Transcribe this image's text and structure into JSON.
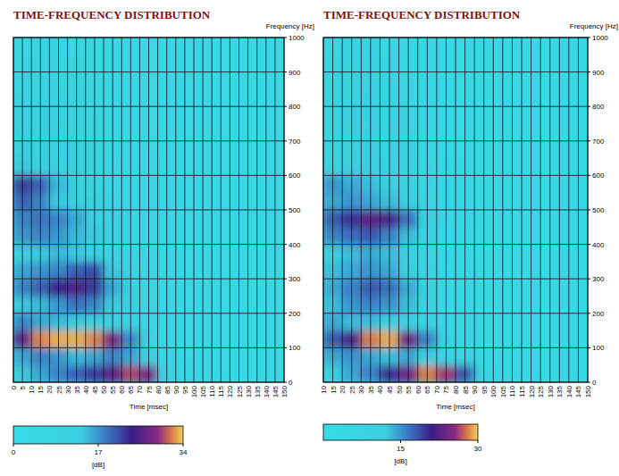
{
  "chart_data": [
    {
      "type": "heatmap",
      "title": "TIME-FREQUENCY DISTRIBUTION",
      "xlabel": "Time [msec]",
      "ylabel": "Frequency [Hz]",
      "xlim": [
        0,
        150
      ],
      "ylim": [
        0,
        1000
      ],
      "xticks": [
        0,
        5,
        10,
        15,
        20,
        25,
        30,
        35,
        40,
        45,
        50,
        55,
        60,
        65,
        70,
        75,
        80,
        85,
        90,
        95,
        100,
        105,
        110,
        115,
        120,
        125,
        130,
        135,
        140,
        145,
        150
      ],
      "yticks": [
        0,
        100,
        200,
        300,
        400,
        500,
        600,
        700,
        800,
        900,
        1000
      ],
      "grid": true,
      "x": [
        5,
        15,
        25,
        35,
        45,
        55,
        65,
        75,
        85,
        95,
        105,
        115,
        125,
        135,
        145
      ],
      "y": [
        25,
        75,
        125,
        175,
        225,
        275,
        325,
        375,
        425,
        475,
        525,
        575,
        625,
        675,
        725,
        775,
        825,
        875,
        925,
        975
      ],
      "z": [
        [
          14,
          16,
          18,
          20,
          22,
          26,
          30,
          28,
          12,
          4,
          3,
          3,
          3,
          3,
          3
        ],
        [
          16,
          18,
          17,
          15,
          16,
          18,
          16,
          12,
          6,
          3,
          3,
          3,
          3,
          3,
          3
        ],
        [
          26,
          32,
          33,
          33,
          32,
          28,
          18,
          10,
          5,
          3,
          3,
          3,
          3,
          3,
          3
        ],
        [
          18,
          16,
          15,
          14,
          13,
          12,
          10,
          7,
          4,
          3,
          3,
          3,
          3,
          3,
          3
        ],
        [
          14,
          15,
          17,
          19,
          18,
          14,
          12,
          8,
          4,
          3,
          3,
          3,
          3,
          3,
          3
        ],
        [
          18,
          20,
          24,
          25,
          22,
          16,
          12,
          8,
          4,
          3,
          3,
          3,
          3,
          3,
          3
        ],
        [
          16,
          17,
          18,
          20,
          21,
          14,
          10,
          6,
          4,
          3,
          3,
          3,
          3,
          3,
          3
        ],
        [
          13,
          14,
          15,
          14,
          12,
          10,
          8,
          5,
          3,
          3,
          3,
          3,
          3,
          3,
          3
        ],
        [
          17,
          18,
          17,
          15,
          14,
          10,
          7,
          5,
          3,
          3,
          3,
          3,
          3,
          3,
          3
        ],
        [
          18,
          19,
          18,
          16,
          13,
          10,
          7,
          4,
          3,
          3,
          3,
          3,
          3,
          3,
          3
        ],
        [
          20,
          18,
          14,
          13,
          12,
          9,
          6,
          4,
          3,
          3,
          3,
          3,
          3,
          3,
          3
        ],
        [
          22,
          20,
          15,
          12,
          10,
          8,
          6,
          4,
          3,
          3,
          3,
          3,
          3,
          3,
          3
        ],
        [
          14,
          13,
          12,
          12,
          10,
          8,
          6,
          4,
          3,
          3,
          3,
          3,
          3,
          3,
          3
        ],
        [
          12,
          12,
          13,
          12,
          10,
          7,
          5,
          3,
          3,
          3,
          3,
          3,
          3,
          3,
          3
        ],
        [
          11,
          11,
          12,
          11,
          9,
          7,
          5,
          3,
          3,
          3,
          3,
          3,
          3,
          3,
          3
        ],
        [
          10,
          11,
          11,
          10,
          9,
          6,
          4,
          3,
          3,
          3,
          3,
          3,
          3,
          3,
          3
        ],
        [
          10,
          10,
          11,
          10,
          8,
          6,
          4,
          3,
          3,
          3,
          3,
          3,
          3,
          3,
          3
        ],
        [
          9,
          10,
          10,
          9,
          8,
          5,
          4,
          3,
          3,
          3,
          3,
          3,
          3,
          3,
          3
        ],
        [
          9,
          9,
          10,
          9,
          7,
          5,
          3,
          3,
          3,
          3,
          3,
          3,
          3,
          3,
          3
        ],
        [
          8,
          9,
          9,
          8,
          7,
          5,
          3,
          3,
          3,
          3,
          3,
          3,
          3,
          3,
          3
        ]
      ],
      "colorbar": {
        "range": [
          0,
          34
        ],
        "ticks": [
          0,
          17,
          34
        ],
        "label": "[dB]"
      }
    },
    {
      "type": "heatmap",
      "title": "TIME-FREQUENCY DISTRIBUTION",
      "xlabel": "Time [msec]",
      "ylabel": "Frequency [Hz]",
      "xlim": [
        10,
        150
      ],
      "ylim": [
        0,
        1000
      ],
      "xticks": [
        10,
        15,
        20,
        25,
        30,
        35,
        40,
        45,
        50,
        55,
        60,
        65,
        70,
        75,
        80,
        85,
        90,
        95,
        100,
        105,
        110,
        115,
        120,
        125,
        130,
        135,
        140,
        145,
        150
      ],
      "yticks": [
        0,
        100,
        200,
        300,
        400,
        500,
        600,
        700,
        800,
        900,
        1000
      ],
      "grid": true,
      "x": [
        15,
        25,
        35,
        45,
        55,
        65,
        75,
        85,
        95,
        105,
        115,
        125,
        135,
        145
      ],
      "y": [
        25,
        75,
        125,
        175,
        225,
        275,
        325,
        375,
        425,
        475,
        525,
        575,
        625,
        675,
        725,
        775,
        825,
        875,
        925,
        975
      ],
      "z": [
        [
          12,
          14,
          16,
          20,
          24,
          28,
          26,
          18,
          8,
          3,
          3,
          3,
          3,
          3
        ],
        [
          14,
          15,
          14,
          13,
          14,
          12,
          10,
          7,
          4,
          3,
          3,
          3,
          3,
          3
        ],
        [
          18,
          22,
          28,
          29,
          24,
          16,
          10,
          6,
          3,
          3,
          3,
          3,
          3,
          3
        ],
        [
          14,
          13,
          13,
          12,
          11,
          9,
          7,
          5,
          3,
          3,
          3,
          3,
          3,
          3
        ],
        [
          13,
          15,
          16,
          15,
          13,
          10,
          7,
          4,
          3,
          3,
          3,
          3,
          3,
          3
        ],
        [
          14,
          16,
          18,
          17,
          14,
          10,
          7,
          4,
          3,
          3,
          3,
          3,
          3,
          3
        ],
        [
          13,
          14,
          15,
          14,
          12,
          9,
          6,
          4,
          3,
          3,
          3,
          3,
          3,
          3
        ],
        [
          12,
          13,
          14,
          13,
          11,
          8,
          5,
          3,
          3,
          3,
          3,
          3,
          3,
          3
        ],
        [
          16,
          17,
          18,
          16,
          13,
          9,
          6,
          3,
          3,
          3,
          3,
          3,
          3,
          3
        ],
        [
          18,
          20,
          23,
          22,
          17,
          11,
          7,
          4,
          3,
          3,
          3,
          3,
          3,
          3
        ],
        [
          14,
          15,
          14,
          13,
          11,
          8,
          5,
          3,
          3,
          3,
          3,
          3,
          3,
          3
        ],
        [
          15,
          14,
          13,
          12,
          10,
          7,
          5,
          3,
          3,
          3,
          3,
          3,
          3,
          3
        ],
        [
          11,
          12,
          12,
          11,
          9,
          7,
          5,
          3,
          3,
          3,
          3,
          3,
          3,
          3
        ],
        [
          10,
          11,
          11,
          10,
          9,
          6,
          4,
          3,
          3,
          3,
          3,
          3,
          3,
          3
        ],
        [
          10,
          10,
          11,
          10,
          8,
          6,
          4,
          3,
          3,
          3,
          3,
          3,
          3,
          3
        ],
        [
          9,
          10,
          10,
          9,
          8,
          5,
          4,
          3,
          3,
          3,
          3,
          3,
          3,
          3
        ],
        [
          9,
          9,
          10,
          9,
          7,
          5,
          3,
          3,
          3,
          3,
          3,
          3,
          3,
          3
        ],
        [
          8,
          9,
          9,
          8,
          7,
          5,
          3,
          3,
          3,
          3,
          3,
          3,
          3,
          3
        ],
        [
          8,
          8,
          9,
          8,
          6,
          4,
          3,
          3,
          3,
          3,
          3,
          3,
          3,
          3
        ],
        [
          7,
          8,
          8,
          7,
          6,
          4,
          3,
          3,
          3,
          3,
          3,
          3,
          3,
          3
        ]
      ],
      "colorbar": {
        "range": [
          0,
          30
        ],
        "ticks": [
          15,
          30
        ],
        "label": "[dB]"
      }
    }
  ]
}
